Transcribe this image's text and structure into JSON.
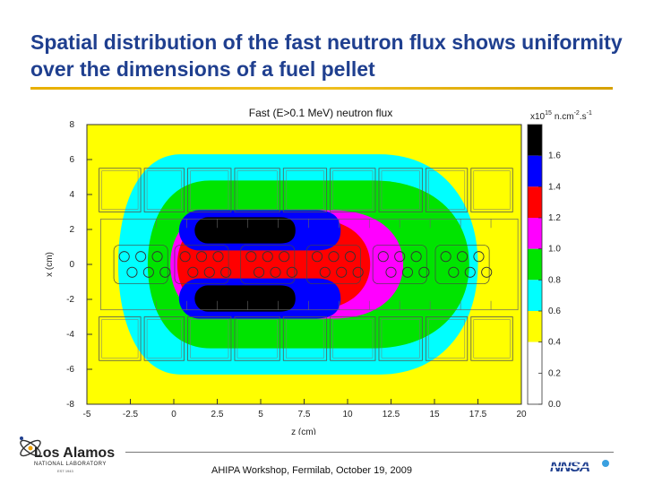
{
  "slide": {
    "title": "Spatial distribution of the fast neutron flux shows uniformity over the dimensions of a fuel pellet",
    "footer": "AHIPA Workshop, Fermilab, October 19, 2009",
    "logo_text": {
      "main": "Los Alamos",
      "sub": "NATIONAL LABORATORY",
      "est": "EST 1943"
    },
    "sponsor_logo_text": "NNSA"
  },
  "chart_data": {
    "type": "heatmap",
    "title": "Fast (E>0.1 MeV) neutron flux",
    "xlabel": "z (cm)",
    "ylabel": "x (cm)",
    "xlim": [
      -5,
      20
    ],
    "ylim": [
      -8,
      8
    ],
    "x_ticks": [
      "-5",
      "-2.5",
      "0",
      "2.5",
      "5",
      "7.5",
      "10",
      "12.5",
      "15",
      "17.5",
      "20"
    ],
    "y_ticks": [
      "8",
      "6",
      "4",
      "2",
      "0",
      "-2",
      "-4",
      "-6",
      "-8"
    ],
    "colorbar": {
      "unit_prefix": "x10",
      "unit_exponent": "15",
      "unit_rest": "n.cm",
      "unit_rest_exp": "-2",
      "unit_s": ".s",
      "unit_s_exp": "-1",
      "ticks": [
        "1.6",
        "1.4",
        "1.2",
        "1.0",
        "0.8",
        "0.6",
        "0.4",
        "0.2",
        "0.0"
      ],
      "bands": [
        {
          "color": "#000000",
          "min": 1.6,
          "max": 1.8
        },
        {
          "color": "#0000ff",
          "min": 1.4,
          "max": 1.6
        },
        {
          "color": "#ff0000",
          "min": 1.2,
          "max": 1.4
        },
        {
          "color": "#ff00ff",
          "min": 1.0,
          "max": 1.2
        },
        {
          "color": "#00e400",
          "min": 0.8,
          "max": 1.0
        },
        {
          "color": "#00ffff",
          "min": 0.6,
          "max": 0.8
        },
        {
          "color": "#ffff00",
          "min": 0.4,
          "max": 0.6
        },
        {
          "color": "#ffffff",
          "min": 0.0,
          "max": 0.4
        }
      ]
    },
    "contours": [
      {
        "level": 0.4,
        "color": "#ffff00",
        "z_min": -5.0,
        "z_max": 20.0,
        "x_min": -8.0,
        "x_max": 8.0
      },
      {
        "level": 0.6,
        "color": "#00ffff",
        "z_min": -3.2,
        "z_max": 17.5,
        "x_min": -6.3,
        "x_max": 6.3
      },
      {
        "level": 0.8,
        "color": "#00e400",
        "z_min": -1.5,
        "z_max": 17.0,
        "x_min": -4.8,
        "x_max": 4.8
      },
      {
        "level": 1.0,
        "color": "#ff00ff",
        "z_min": -0.2,
        "z_max": 13.2,
        "x_min": -3.1,
        "x_max": 3.1
      },
      {
        "level": 1.2,
        "color": "#ff0000",
        "z_min": 0.2,
        "z_max": 11.3,
        "x_min": -2.6,
        "x_max": 2.6
      }
    ],
    "lobes": [
      {
        "level": 1.4,
        "color": "#0000ff",
        "z_min": 0.3,
        "z_max": 9.6,
        "x_min": 0.8,
        "x_max": 3.1
      },
      {
        "level": 1.4,
        "color": "#0000ff",
        "z_min": 0.3,
        "z_max": 9.6,
        "x_min": -3.1,
        "x_max": -0.8
      },
      {
        "level": 1.6,
        "color": "#000000",
        "z_min": 1.2,
        "z_max": 7.0,
        "x_min": 1.2,
        "x_max": 2.7
      },
      {
        "level": 1.6,
        "color": "#000000",
        "z_min": 1.2,
        "z_max": 7.0,
        "x_min": -2.7,
        "x_max": -1.2
      }
    ],
    "geometry": {
      "upper_blocks_x": [
        3.0,
        5.5
      ],
      "lower_blocks_x": [
        -5.5,
        -3.0
      ],
      "block_z_edges": [
        -4.4,
        -1.8,
        0.7,
        3.4,
        6.2,
        8.9,
        11.7,
        14.4,
        17.0,
        19.6
      ],
      "channel_block_x": [
        -2.6,
        2.6
      ],
      "pellet_rows_x": [
        0.45,
        -0.45
      ],
      "pellet_bundles_z": [
        -1.9,
        1.6,
        5.4,
        9.2,
        13.0,
        16.6
      ]
    }
  }
}
